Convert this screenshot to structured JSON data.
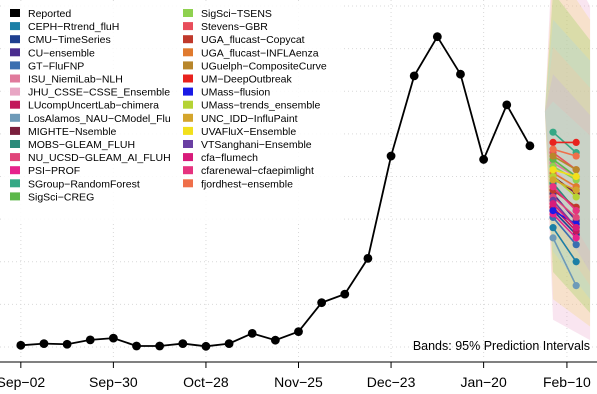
{
  "chart_data": {
    "type": "line",
    "title": "",
    "xlabel": "",
    "ylabel": "",
    "x_tick_labels": [
      "Sep−02",
      "Sep−30",
      "Oct−28",
      "Nov−25",
      "Dec−23",
      "Jan−20",
      "Feb−10"
    ],
    "x_tick_weeks": [
      0,
      4,
      8,
      12,
      16,
      20,
      23.6
    ],
    "x_range_weeks": [
      -0.9,
      24.9
    ],
    "y_range": [
      0,
      100
    ],
    "grid": true,
    "legend_placement": "top-left",
    "note": "Bands: 95% Prediction Intervals",
    "reported": {
      "name": "Reported",
      "color": "#000000",
      "weeks": [
        0,
        1,
        2,
        3,
        4,
        5,
        6,
        7,
        8,
        9,
        10,
        11,
        12,
        13,
        14,
        15,
        16,
        17,
        18,
        19,
        20,
        21,
        22
      ],
      "values": [
        0.5,
        1.0,
        0.8,
        2.1,
        2.6,
        0.3,
        0.3,
        1.0,
        0.2,
        1.0,
        4.0,
        2.0,
        4.5,
        13.0,
        15.5,
        26.0,
        56.0,
        79.5,
        91.0,
        80.0,
        55.0,
        71.0,
        59.0
      ]
    },
    "forecast_start_week": 22,
    "forecast_weeks": [
      23,
      24
    ],
    "models": [
      {
        "name": "Reported",
        "color": "#000000"
      },
      {
        "name": "CEPH−Rtrend_fluH",
        "color": "#1b7fa6"
      },
      {
        "name": "CMU−TimeSeries",
        "color": "#1f3f8f"
      },
      {
        "name": "CU−ensemble",
        "color": "#4b2d8f"
      },
      {
        "name": "GT−FluFNP",
        "color": "#3a6fb0"
      },
      {
        "name": "ISU_NiemiLab−NLH",
        "color": "#e07a9c"
      },
      {
        "name": "JHU_CSSE−CSSE_Ensemble",
        "color": "#e8a6c4"
      },
      {
        "name": "LUcompUncertLab−chimera",
        "color": "#c2185b"
      },
      {
        "name": "LosAlamos_NAU−CModel_Flu",
        "color": "#6e9ab8"
      },
      {
        "name": "MIGHTE−Nsemble",
        "color": "#7a1f3d"
      },
      {
        "name": "MOBS−GLEAM_FLUH",
        "color": "#2a8a7a"
      },
      {
        "name": "NU_UCSD−GLEAM_AI_FLUH",
        "color": "#e0457a"
      },
      {
        "name": "PSI−PROF",
        "color": "#e6238c"
      },
      {
        "name": "SGroup−RandomForest",
        "color": "#35a885"
      },
      {
        "name": "SigSci−CREG",
        "color": "#5cb84a"
      },
      {
        "name": "SigSci−TSENS",
        "color": "#8fd14f"
      },
      {
        "name": "Stevens−GBR",
        "color": "#e84d5b"
      },
      {
        "name": "UGA_flucast−Copycat",
        "color": "#c0392b"
      },
      {
        "name": "UGA_flucast−INFLAenza",
        "color": "#e07a2e"
      },
      {
        "name": "UGuelph−CompositeCurve",
        "color": "#b8862b"
      },
      {
        "name": "UM−DeepOutbreak",
        "color": "#e8221e"
      },
      {
        "name": "UMass−flusion",
        "color": "#1a1ae6"
      },
      {
        "name": "UMass−trends_ensemble",
        "color": "#b5d334"
      },
      {
        "name": "UNC_IDD−InfluPaint",
        "color": "#d4a52c"
      },
      {
        "name": "UVAFluX−Ensemble",
        "color": "#f2e01c"
      },
      {
        "name": "VTSanghani−Ensemble",
        "color": "#6a3fa3"
      },
      {
        "name": "cfa−flumech",
        "color": "#d81b7a"
      },
      {
        "name": "cfarenewal−cfaepimlight",
        "color": "#e6337f"
      },
      {
        "name": "fjordhest−ensemble",
        "color": "#ef6f4a"
      }
    ],
    "forecasts": [
      {
        "model": "CEPH−Rtrend_fluH",
        "values": [
          35,
          25
        ]
      },
      {
        "model": "CMU−TimeSeries",
        "values": [
          40,
          33
        ]
      },
      {
        "model": "CU−ensemble",
        "values": [
          45,
          37
        ]
      },
      {
        "model": "GT−FluFNP",
        "values": [
          38,
          30
        ]
      },
      {
        "model": "ISU_NiemiLab−NLH",
        "values": [
          54,
          50
        ]
      },
      {
        "model": "JHU_CSSE−CSSE_Ensemble",
        "values": [
          52,
          46
        ]
      },
      {
        "model": "LUcompUncertLab−chimera",
        "values": [
          41,
          34
        ]
      },
      {
        "model": "LosAlamos_NAU−CModel_Flu",
        "values": [
          32,
          18
        ]
      },
      {
        "model": "MIGHTE−Nsemble",
        "values": [
          50,
          45
        ]
      },
      {
        "model": "MOBS−GLEAM_FLUH",
        "values": [
          48,
          40
        ]
      },
      {
        "model": "NU_UCSD−GLEAM_AI_FLUH",
        "values": [
          44,
          38
        ]
      },
      {
        "model": "PSI−PROF",
        "values": [
          39,
          32
        ]
      },
      {
        "model": "SGroup−RandomForest",
        "values": [
          63,
          57
        ]
      },
      {
        "model": "SigSci−CREG",
        "values": [
          55,
          50
        ]
      },
      {
        "model": "SigSci−TSENS",
        "values": [
          53,
          49
        ]
      },
      {
        "model": "Stevens−GBR",
        "values": [
          57,
          52
        ]
      },
      {
        "model": "UGA_flucast−Copycat",
        "values": [
          46,
          41
        ]
      },
      {
        "model": "UGA_flucast−INFLAenza",
        "values": [
          51,
          47
        ]
      },
      {
        "model": "UGuelph−CompositeCurve",
        "values": [
          56,
          52
        ]
      },
      {
        "model": "UM−DeepOutbreak",
        "values": [
          60,
          60
        ]
      },
      {
        "model": "UMass−flusion",
        "values": [
          40,
          36
        ]
      },
      {
        "model": "UMass−trends_ensemble",
        "values": [
          50,
          44
        ]
      },
      {
        "model": "UNC_IDD−InfluPaint",
        "values": [
          49,
          46
        ]
      },
      {
        "model": "UVAFluX−Ensemble",
        "values": [
          52,
          50
        ]
      },
      {
        "model": "VTSanghani−Ensemble",
        "values": [
          43,
          35
        ]
      },
      {
        "model": "cfa−flumech",
        "values": [
          42,
          35
        ]
      },
      {
        "model": "cfarenewal−cfaepimlight",
        "values": [
          47,
          40
        ]
      },
      {
        "model": "fjordhest−ensemble",
        "values": [
          58,
          56
        ]
      }
    ],
    "band_colors": [
      "#e9a3c8",
      "#f5d76e",
      "#8fd14f",
      "#a8d8ea",
      "#f7c59f",
      "#c3b1e1",
      "#b5ead7"
    ]
  }
}
